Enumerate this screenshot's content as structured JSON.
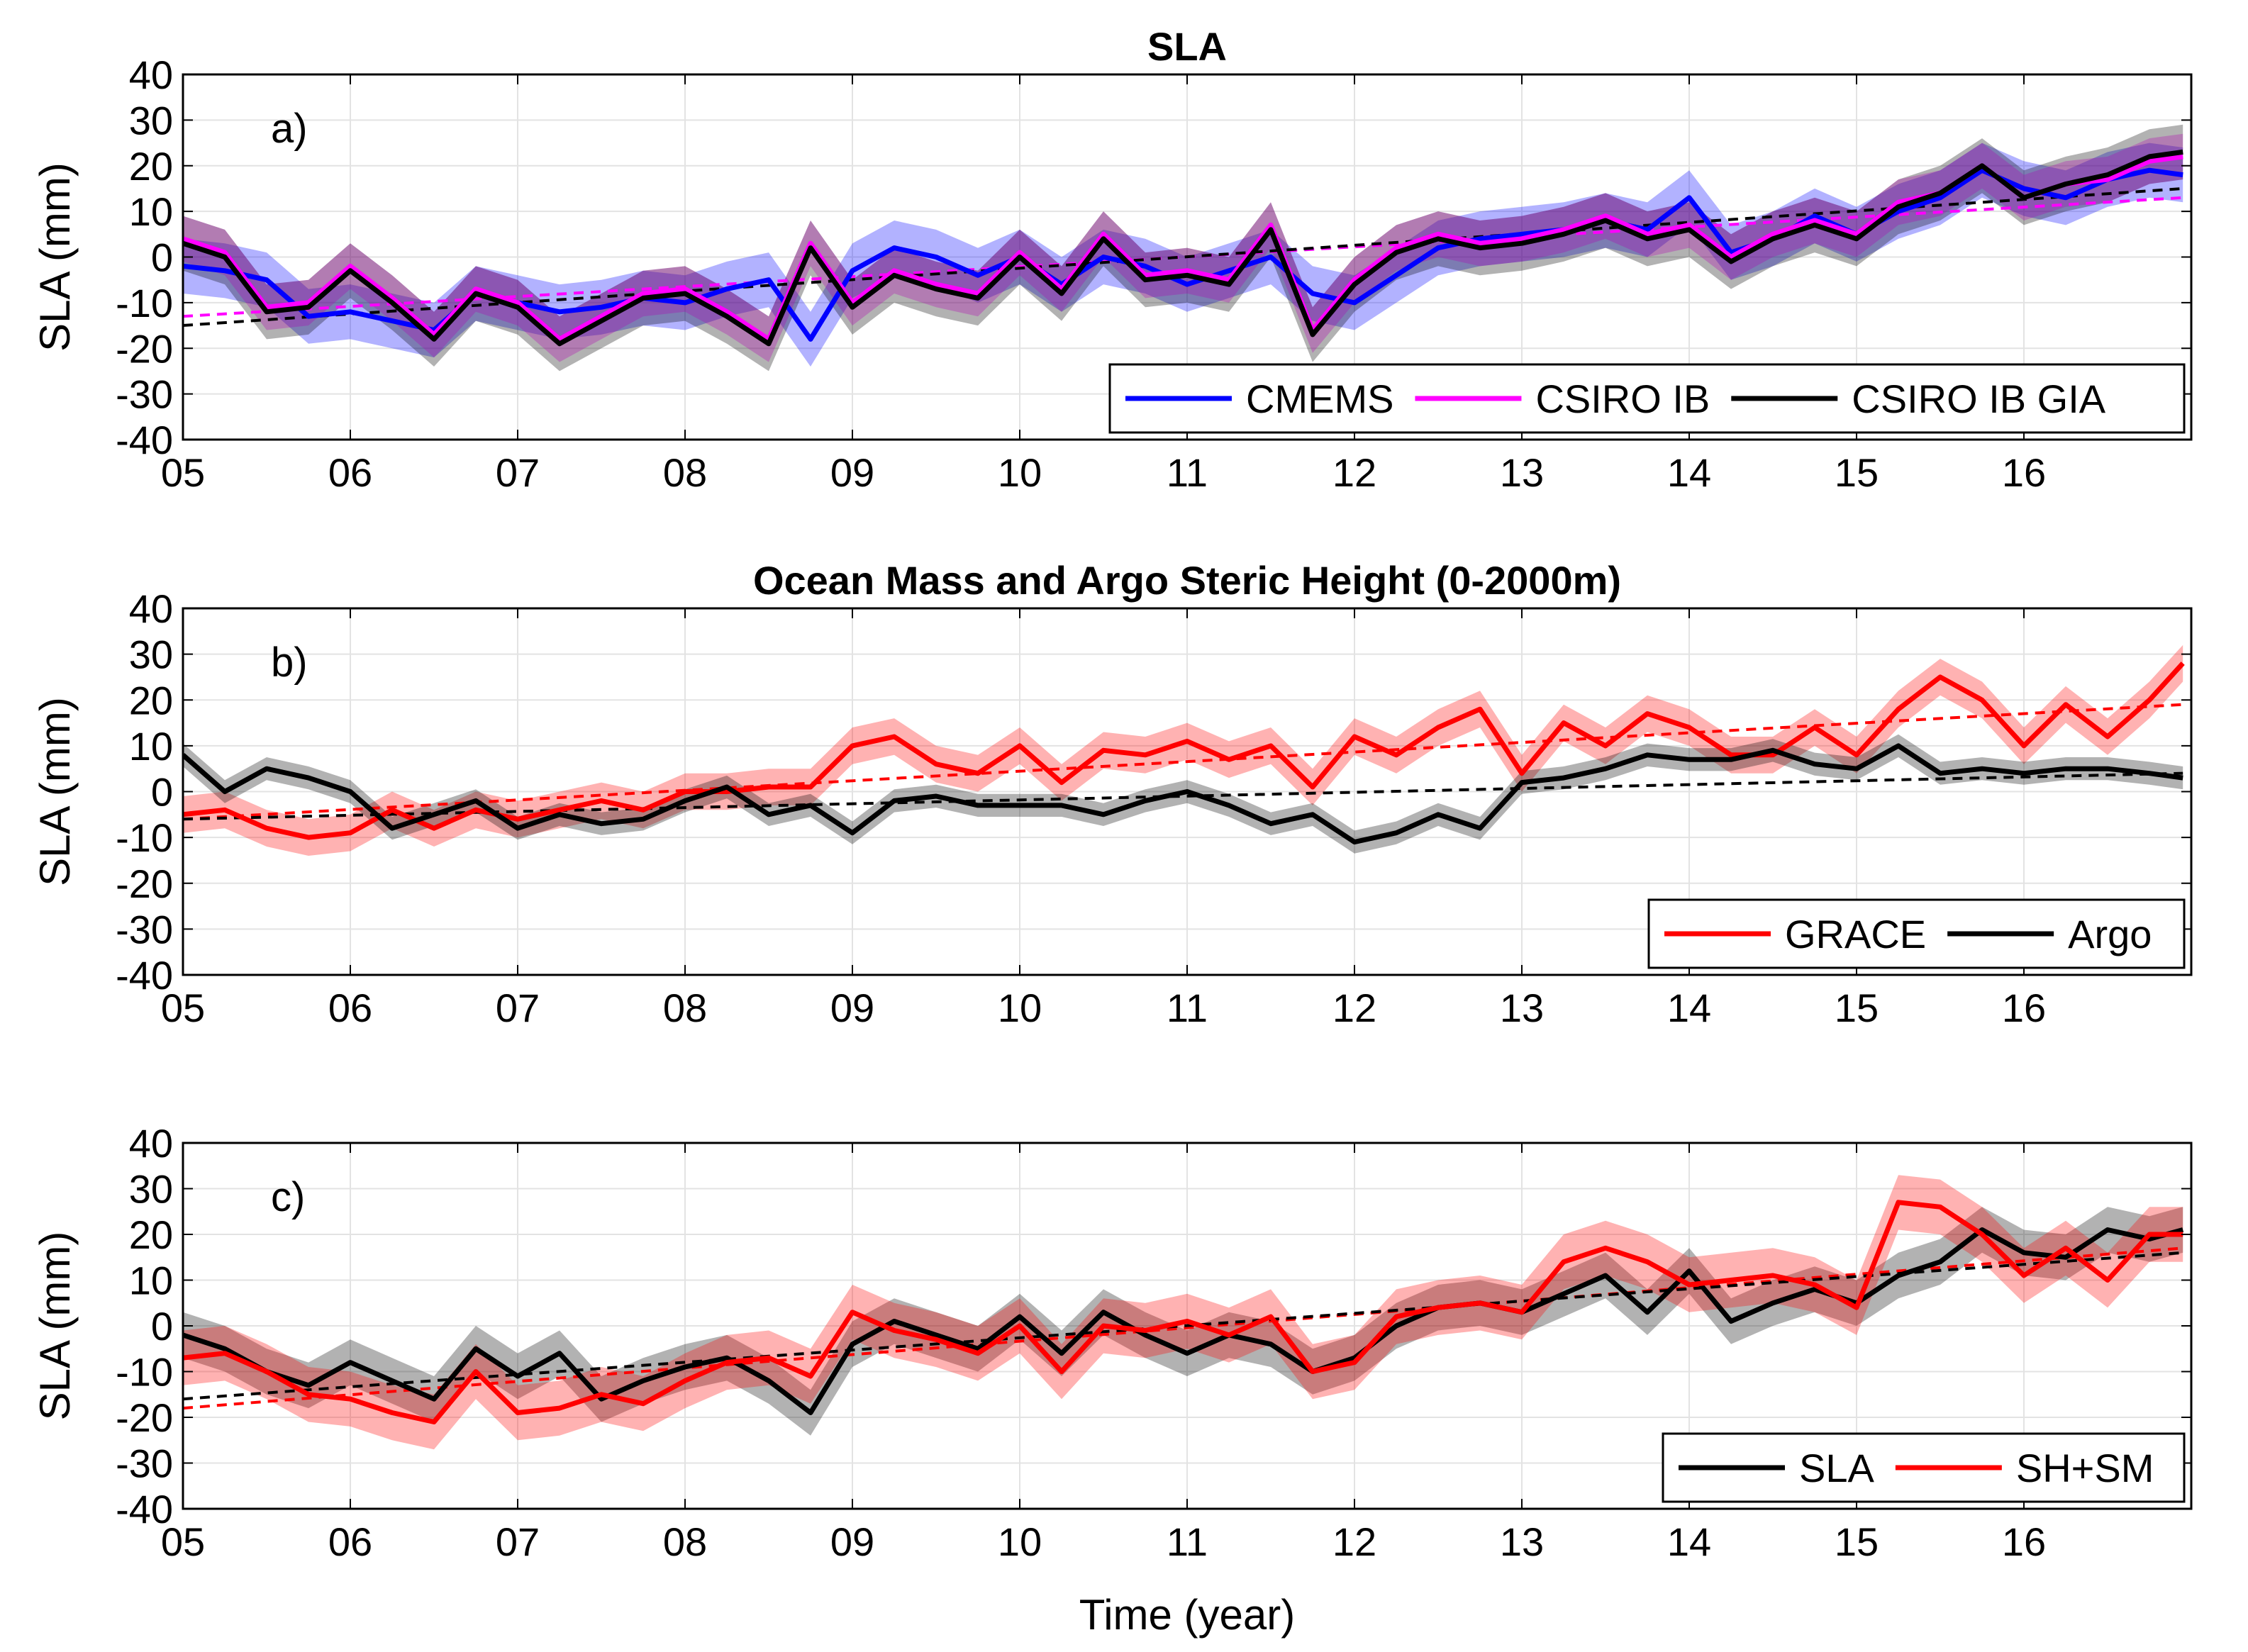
{
  "chart_data": [
    {
      "type": "line",
      "title": "SLA",
      "panel_label": "a)",
      "xlabel": "",
      "ylabel": "SLA (mm)",
      "xlim": [
        5,
        17
      ],
      "ylim": [
        -40,
        40
      ],
      "xticks": [
        5,
        6,
        7,
        8,
        9,
        10,
        11,
        12,
        13,
        14,
        15,
        16
      ],
      "xtick_labels": [
        "05",
        "06",
        "07",
        "08",
        "09",
        "10",
        "11",
        "12",
        "13",
        "14",
        "15",
        "16"
      ],
      "yticks": [
        -40,
        -30,
        -20,
        -10,
        0,
        10,
        20,
        30,
        40
      ],
      "grid": true,
      "legend_position": "bottom-right",
      "legend_layout": "horizontal",
      "series": [
        {
          "name": "CMEMS",
          "color": "#0000ff",
          "x": [
            5.0,
            5.25,
            5.5,
            5.75,
            6.0,
            6.25,
            6.5,
            6.75,
            7.0,
            7.25,
            7.5,
            7.75,
            8.0,
            8.25,
            8.5,
            8.75,
            9.0,
            9.25,
            9.5,
            9.75,
            10.0,
            10.25,
            10.5,
            10.75,
            11.0,
            11.25,
            11.5,
            11.75,
            12.0,
            12.25,
            12.5,
            12.75,
            13.0,
            13.25,
            13.5,
            13.75,
            14.0,
            14.25,
            14.5,
            14.75,
            15.0,
            15.25,
            15.5,
            15.75,
            16.0,
            16.25,
            16.5,
            16.75,
            16.95
          ],
          "y": [
            -2,
            -3,
            -5,
            -13,
            -12,
            -14,
            -16,
            -8,
            -10,
            -12,
            -11,
            -9,
            -10,
            -7,
            -5,
            -18,
            -3,
            2,
            0,
            -4,
            0,
            -6,
            0,
            -2,
            -6,
            -3,
            0,
            -8,
            -10,
            -4,
            2,
            4,
            5,
            6,
            8,
            6,
            13,
            1,
            4,
            9,
            5,
            10,
            13,
            19,
            15,
            13,
            17,
            19,
            18
          ],
          "band": 6
        },
        {
          "name": "CSIRO IB",
          "color": "#ff00ff",
          "x": [
            5.0,
            5.25,
            5.5,
            5.75,
            6.0,
            6.25,
            6.5,
            6.75,
            7.0,
            7.25,
            7.5,
            7.75,
            8.0,
            8.25,
            8.5,
            8.75,
            9.0,
            9.25,
            9.5,
            9.75,
            10.0,
            10.25,
            10.5,
            10.75,
            11.0,
            11.25,
            11.5,
            11.75,
            12.0,
            12.25,
            12.5,
            12.75,
            13.0,
            13.25,
            13.5,
            13.75,
            14.0,
            14.25,
            14.5,
            14.75,
            15.0,
            15.25,
            15.5,
            15.75,
            16.0,
            16.25,
            16.5,
            16.75,
            16.95
          ],
          "y": [
            4,
            1,
            -11,
            -10,
            -2,
            -9,
            -17,
            -7,
            -10,
            -18,
            -13,
            -8,
            -7,
            -12,
            -18,
            3,
            -10,
            -3,
            -6,
            -8,
            1,
            -7,
            5,
            -4,
            -3,
            -5,
            7,
            -16,
            -5,
            2,
            5,
            3,
            4,
            6,
            9,
            5,
            7,
            0,
            5,
            8,
            5,
            12,
            14,
            20,
            13,
            16,
            17,
            21,
            22
          ],
          "band": 5
        },
        {
          "name": "CSIRO IB GIA",
          "color": "#000000",
          "x": [
            5.0,
            5.25,
            5.5,
            5.75,
            6.0,
            6.25,
            6.5,
            6.75,
            7.0,
            7.25,
            7.5,
            7.75,
            8.0,
            8.25,
            8.5,
            8.75,
            9.0,
            9.25,
            9.5,
            9.75,
            10.0,
            10.25,
            10.5,
            10.75,
            11.0,
            11.25,
            11.5,
            11.75,
            12.0,
            12.25,
            12.5,
            12.75,
            13.0,
            13.25,
            13.5,
            13.75,
            14.0,
            14.25,
            14.5,
            14.75,
            15.0,
            15.25,
            15.5,
            15.75,
            16.0,
            16.25,
            16.5,
            16.75,
            16.95
          ],
          "y": [
            3,
            0,
            -12,
            -11,
            -3,
            -10,
            -18,
            -8,
            -11,
            -19,
            -14,
            -9,
            -8,
            -13,
            -19,
            2,
            -11,
            -4,
            -7,
            -9,
            0,
            -8,
            4,
            -5,
            -4,
            -6,
            6,
            -17,
            -6,
            1,
            4,
            2,
            3,
            5,
            8,
            4,
            6,
            -1,
            4,
            7,
            4,
            11,
            14,
            20,
            13,
            16,
            18,
            22,
            23
          ],
          "band": 6
        }
      ],
      "trends": [
        {
          "color": "#ff00ff",
          "x": [
            5.0,
            16.95
          ],
          "y": [
            -13,
            13
          ]
        },
        {
          "color": "#000000",
          "x": [
            5.0,
            16.95
          ],
          "y": [
            -15,
            15
          ]
        }
      ]
    },
    {
      "type": "line",
      "title": "Ocean Mass and Argo Steric Height (0-2000m)",
      "panel_label": "b)",
      "xlabel": "",
      "ylabel": "SLA (mm)",
      "xlim": [
        5,
        17
      ],
      "ylim": [
        -40,
        40
      ],
      "xticks": [
        5,
        6,
        7,
        8,
        9,
        10,
        11,
        12,
        13,
        14,
        15,
        16
      ],
      "xtick_labels": [
        "05",
        "06",
        "07",
        "08",
        "09",
        "10",
        "11",
        "12",
        "13",
        "14",
        "15",
        "16"
      ],
      "yticks": [
        -40,
        -30,
        -20,
        -10,
        0,
        10,
        20,
        30,
        40
      ],
      "grid": true,
      "legend_position": "bottom-right",
      "legend_layout": "horizontal",
      "series": [
        {
          "name": "GRACE",
          "color": "#ff0000",
          "x": [
            5.0,
            5.25,
            5.5,
            5.75,
            6.0,
            6.25,
            6.5,
            6.75,
            7.0,
            7.25,
            7.5,
            7.75,
            8.0,
            8.25,
            8.5,
            8.75,
            9.0,
            9.25,
            9.5,
            9.75,
            10.0,
            10.25,
            10.5,
            10.75,
            11.0,
            11.25,
            11.5,
            11.75,
            12.0,
            12.25,
            12.5,
            12.75,
            13.0,
            13.25,
            13.5,
            13.75,
            14.0,
            14.25,
            14.5,
            14.75,
            15.0,
            15.25,
            15.5,
            15.75,
            16.0,
            16.25,
            16.5,
            16.75,
            16.95
          ],
          "y": [
            -5,
            -4,
            -8,
            -10,
            -9,
            -4,
            -8,
            -4,
            -6,
            -4,
            -2,
            -4,
            0,
            0,
            1,
            1,
            10,
            12,
            6,
            4,
            10,
            2,
            9,
            8,
            11,
            7,
            10,
            1,
            12,
            8,
            14,
            18,
            4,
            15,
            10,
            17,
            14,
            8,
            8,
            14,
            8,
            18,
            25,
            20,
            10,
            19,
            12,
            20,
            28
          ],
          "band": 4
        },
        {
          "name": "Argo",
          "color": "#000000",
          "x": [
            5.0,
            5.25,
            5.5,
            5.75,
            6.0,
            6.25,
            6.5,
            6.75,
            7.0,
            7.25,
            7.5,
            7.75,
            8.0,
            8.25,
            8.5,
            8.75,
            9.0,
            9.25,
            9.5,
            9.75,
            10.0,
            10.25,
            10.5,
            10.75,
            11.0,
            11.25,
            11.5,
            11.75,
            12.0,
            12.25,
            12.5,
            12.75,
            13.0,
            13.25,
            13.5,
            13.75,
            14.0,
            14.25,
            14.5,
            14.75,
            15.0,
            15.25,
            15.5,
            15.75,
            16.0,
            16.25,
            16.5,
            16.75,
            16.95
          ],
          "y": [
            8,
            0,
            5,
            3,
            0,
            -8,
            -5,
            -2,
            -8,
            -5,
            -7,
            -6,
            -2,
            1,
            -5,
            -3,
            -9,
            -2,
            -1,
            -3,
            -3,
            -3,
            -5,
            -2,
            0,
            -3,
            -7,
            -5,
            -11,
            -9,
            -5,
            -8,
            2,
            3,
            5,
            8,
            7,
            7,
            9,
            6,
            5,
            10,
            4,
            5,
            4,
            5,
            5,
            4,
            3
          ],
          "band": 2.5
        }
      ],
      "trends": [
        {
          "color": "#ff0000",
          "x": [
            5.0,
            16.95
          ],
          "y": [
            -6,
            19
          ]
        },
        {
          "color": "#000000",
          "x": [
            5.0,
            16.95
          ],
          "y": [
            -6,
            4
          ]
        }
      ]
    },
    {
      "type": "line",
      "title": "",
      "panel_label": "c)",
      "xlabel": "Time (year)",
      "ylabel": "SLA (mm)",
      "xlim": [
        5,
        17
      ],
      "ylim": [
        -40,
        40
      ],
      "xticks": [
        5,
        6,
        7,
        8,
        9,
        10,
        11,
        12,
        13,
        14,
        15,
        16
      ],
      "xtick_labels": [
        "05",
        "06",
        "07",
        "08",
        "09",
        "10",
        "11",
        "12",
        "13",
        "14",
        "15",
        "16"
      ],
      "yticks": [
        -40,
        -30,
        -20,
        -10,
        0,
        10,
        20,
        30,
        40
      ],
      "grid": true,
      "legend_position": "bottom-right",
      "legend_layout": "horizontal",
      "series": [
        {
          "name": "SLA",
          "color": "#000000",
          "x": [
            5.0,
            5.25,
            5.5,
            5.75,
            6.0,
            6.25,
            6.5,
            6.75,
            7.0,
            7.25,
            7.5,
            7.75,
            8.0,
            8.25,
            8.5,
            8.75,
            9.0,
            9.25,
            9.5,
            9.75,
            10.0,
            10.25,
            10.5,
            10.75,
            11.0,
            11.25,
            11.5,
            11.75,
            12.0,
            12.25,
            12.5,
            12.75,
            13.0,
            13.25,
            13.5,
            13.75,
            14.0,
            14.25,
            14.5,
            14.75,
            15.0,
            15.25,
            15.5,
            15.75,
            16.0,
            16.25,
            16.5,
            16.75,
            16.95
          ],
          "y": [
            -2,
            -5,
            -10,
            -13,
            -8,
            -12,
            -16,
            -5,
            -11,
            -6,
            -16,
            -12,
            -9,
            -7,
            -12,
            -19,
            -4,
            1,
            -2,
            -5,
            2,
            -6,
            3,
            -2,
            -6,
            -2,
            -4,
            -10,
            -7,
            0,
            4,
            5,
            3,
            7,
            11,
            3,
            12,
            1,
            5,
            8,
            5,
            11,
            14,
            21,
            16,
            15,
            21,
            19,
            21
          ],
          "band": 5
        },
        {
          "name": "SH+SM",
          "color": "#ff0000",
          "x": [
            5.0,
            5.25,
            5.5,
            5.75,
            6.0,
            6.25,
            6.5,
            6.75,
            7.0,
            7.25,
            7.5,
            7.75,
            8.0,
            8.25,
            8.5,
            8.75,
            9.0,
            9.25,
            9.5,
            9.75,
            10.0,
            10.25,
            10.5,
            10.75,
            11.0,
            11.25,
            11.5,
            11.75,
            12.0,
            12.25,
            12.5,
            12.75,
            13.0,
            13.25,
            13.5,
            13.75,
            14.0,
            14.25,
            14.5,
            14.75,
            15.0,
            15.25,
            15.5,
            15.75,
            16.0,
            16.25,
            16.5,
            16.75,
            16.95
          ],
          "y": [
            -7,
            -6,
            -10,
            -15,
            -16,
            -19,
            -21,
            -10,
            -19,
            -18,
            -15,
            -17,
            -12,
            -8,
            -7,
            -11,
            3,
            -1,
            -3,
            -6,
            0,
            -10,
            0,
            -1,
            1,
            -2,
            2,
            -10,
            -8,
            2,
            4,
            5,
            3,
            14,
            17,
            14,
            9,
            10,
            11,
            9,
            4,
            27,
            26,
            20,
            11,
            17,
            10,
            20,
            20
          ],
          "band": 6
        }
      ],
      "trends": [
        {
          "color": "#ff0000",
          "x": [
            5.0,
            16.95
          ],
          "y": [
            -18,
            17
          ]
        },
        {
          "color": "#000000",
          "x": [
            5.0,
            16.95
          ],
          "y": [
            -16,
            16
          ]
        }
      ]
    }
  ]
}
